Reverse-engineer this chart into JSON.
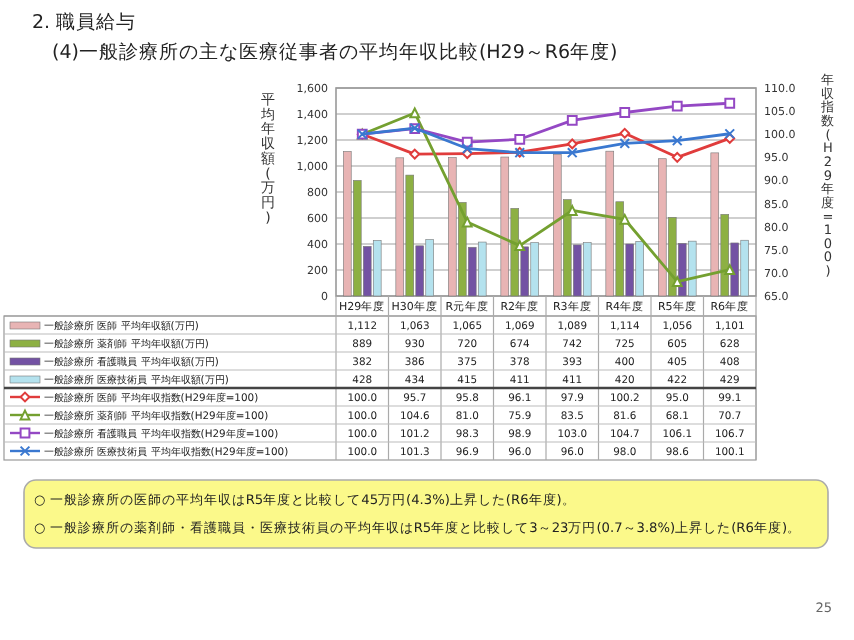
{
  "chart_data": {
    "type": "bar",
    "title": "2. 職員給与",
    "subtitle": "(4)一般診療所の主な医療従事者の平均年収比較(H29～R6年度)",
    "ylabel": "平均年収額(万円)",
    "y2label": "年収指数(H29年度=100)",
    "categories": [
      "H29年度",
      "H30年度",
      "R元年度",
      "R2年度",
      "R3年度",
      "R4年度",
      "R5年度",
      "R6年度"
    ],
    "series": [
      {
        "name": "一般診療所 医師 平均年収額(万円)",
        "type": "bar",
        "color": "#e8b4b4",
        "values": [
          1112,
          1063,
          1065,
          1069,
          1089,
          1114,
          1056,
          1101
        ],
        "value_labels": [
          "1,112",
          "1,063",
          "1,065",
          "1,069",
          "1,089",
          "1,114",
          "1,056",
          "1,101"
        ]
      },
      {
        "name": "一般診療所 薬剤師 平均年収額(万円)",
        "type": "bar",
        "color": "#8db043",
        "values": [
          889,
          930,
          720,
          674,
          742,
          725,
          605,
          628
        ],
        "value_labels": [
          "889",
          "930",
          "720",
          "674",
          "742",
          "725",
          "605",
          "628"
        ]
      },
      {
        "name": "一般診療所 看護職員 平均年収額(万円)",
        "type": "bar",
        "color": "#7352a3",
        "values": [
          382,
          386,
          375,
          378,
          393,
          400,
          405,
          408
        ],
        "value_labels": [
          "382",
          "386",
          "375",
          "378",
          "393",
          "400",
          "405",
          "408"
        ]
      },
      {
        "name": "一般診療所 医療技術員 平均年収額(万円)",
        "type": "bar",
        "color": "#b4e2ee",
        "values": [
          428,
          434,
          415,
          411,
          411,
          420,
          422,
          429
        ],
        "value_labels": [
          "428",
          "434",
          "415",
          "411",
          "411",
          "420",
          "422",
          "429"
        ]
      },
      {
        "name": "一般診療所 医師 平均年収指数(H29年度=100)",
        "type": "line",
        "axis": "y2",
        "marker": "diamond",
        "color": "#e03c3c",
        "values": [
          100.0,
          95.7,
          95.8,
          96.1,
          97.9,
          100.2,
          95.0,
          99.1
        ],
        "value_labels": [
          "100.0",
          "95.7",
          "95.8",
          "96.1",
          "97.9",
          "100.2",
          "95.0",
          "99.1"
        ]
      },
      {
        "name": "一般診療所 薬剤師 平均年収指数(H29年度=100)",
        "type": "line",
        "axis": "y2",
        "marker": "triangle",
        "color": "#74a030",
        "values": [
          100.0,
          104.6,
          81.0,
          75.9,
          83.5,
          81.6,
          68.1,
          70.7
        ],
        "value_labels": [
          "100.0",
          "104.6",
          "81.0",
          "75.9",
          "83.5",
          "81.6",
          "68.1",
          "70.7"
        ]
      },
      {
        "name": "一般診療所 看護職員 平均年収指数(H29年度=100)",
        "type": "line",
        "axis": "y2",
        "marker": "square",
        "color": "#9448c4",
        "values": [
          100.0,
          101.2,
          98.3,
          98.9,
          103.0,
          104.7,
          106.1,
          106.7
        ],
        "value_labels": [
          "100.0",
          "101.2",
          "98.3",
          "98.9",
          "103.0",
          "104.7",
          "106.1",
          "106.7"
        ]
      },
      {
        "name": "一般診療所 医療技術員 平均年収指数(H29年度=100)",
        "type": "line",
        "axis": "y2",
        "marker": "cross",
        "color": "#3a78d0",
        "values": [
          100.0,
          101.3,
          96.9,
          96.0,
          96.0,
          98.0,
          98.6,
          100.1
        ],
        "value_labels": [
          "100.0",
          "101.3",
          "96.9",
          "96.0",
          "96.0",
          "98.0",
          "98.6",
          "100.1"
        ]
      }
    ],
    "ylim": [
      0,
      1600
    ],
    "yticks": [
      0,
      200,
      400,
      600,
      800,
      {
        "value": 1000,
        "label": "1,000"
      },
      {
        "value": 1200,
        "label": "1,200"
      },
      {
        "value": 1400,
        "label": "1,400"
      },
      {
        "value": 1600,
        "label": "1,600"
      }
    ],
    "y2lim": [
      65,
      110
    ],
    "y2ticks": [
      {
        "value": 65,
        "label": "65.0"
      },
      {
        "value": 70,
        "label": "70.0"
      },
      {
        "value": 75,
        "label": "75.0"
      },
      {
        "value": 80,
        "label": "80.0"
      },
      {
        "value": 85,
        "label": "85.0"
      },
      {
        "value": 90,
        "label": "90.0"
      },
      {
        "value": 95,
        "label": "95.0"
      },
      {
        "value": 100,
        "label": "100.0"
      },
      {
        "value": 105,
        "label": "105.0"
      },
      {
        "value": 110,
        "label": "110.0"
      }
    ],
    "grid": "y",
    "legend": "bottom",
    "annotations": [
      "○ 一般診療所の医師の平均年収はR5年度と比較して45万円(4.3%)上昇した(R6年度)。",
      "○ 一般診療所の薬剤師・看護職員・医療技術員の平均年収はR5年度と比較して3～23万円(0.7～3.8%)上昇した(R6年度)。",
      "25"
    ]
  }
}
